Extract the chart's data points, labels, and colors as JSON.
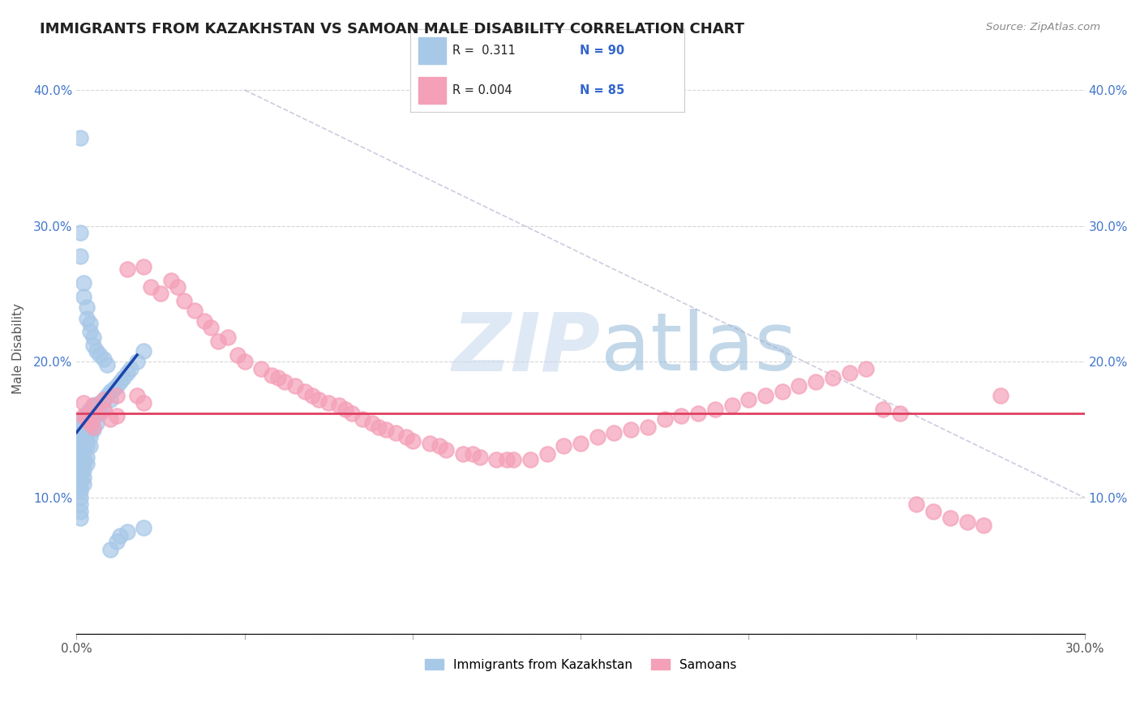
{
  "title": "IMMIGRANTS FROM KAZAKHSTAN VS SAMOAN MALE DISABILITY CORRELATION CHART",
  "source": "Source: ZipAtlas.com",
  "ylabel_label": "Male Disability",
  "xlim": [
    0.0,
    0.3
  ],
  "ylim": [
    0.0,
    0.42
  ],
  "blue_color": "#a8c8e8",
  "pink_color": "#f4a0b8",
  "blue_line_color": "#1a44aa",
  "pink_line_color": "#e04060",
  "watermark_zip": "ZIP",
  "watermark_atlas": "atlas",
  "blue_scatter_x": [
    0.001,
    0.001,
    0.001,
    0.001,
    0.001,
    0.001,
    0.001,
    0.001,
    0.001,
    0.001,
    0.001,
    0.001,
    0.001,
    0.001,
    0.001,
    0.001,
    0.001,
    0.001,
    0.001,
    0.001,
    0.002,
    0.002,
    0.002,
    0.002,
    0.002,
    0.002,
    0.002,
    0.002,
    0.002,
    0.002,
    0.002,
    0.002,
    0.002,
    0.003,
    0.003,
    0.003,
    0.003,
    0.003,
    0.003,
    0.003,
    0.003,
    0.003,
    0.004,
    0.004,
    0.004,
    0.004,
    0.004,
    0.004,
    0.005,
    0.005,
    0.005,
    0.005,
    0.006,
    0.006,
    0.006,
    0.007,
    0.007,
    0.008,
    0.008,
    0.009,
    0.01,
    0.01,
    0.011,
    0.012,
    0.013,
    0.014,
    0.015,
    0.016,
    0.018,
    0.02,
    0.001,
    0.001,
    0.001,
    0.002,
    0.002,
    0.003,
    0.003,
    0.004,
    0.004,
    0.005,
    0.005,
    0.006,
    0.007,
    0.008,
    0.009,
    0.01,
    0.012,
    0.013,
    0.015,
    0.02
  ],
  "blue_scatter_y": [
    0.155,
    0.152,
    0.148,
    0.145,
    0.142,
    0.138,
    0.135,
    0.132,
    0.128,
    0.125,
    0.122,
    0.118,
    0.115,
    0.112,
    0.108,
    0.105,
    0.1,
    0.095,
    0.09,
    0.085,
    0.158,
    0.155,
    0.15,
    0.148,
    0.145,
    0.142,
    0.138,
    0.135,
    0.13,
    0.125,
    0.12,
    0.115,
    0.11,
    0.162,
    0.158,
    0.155,
    0.15,
    0.148,
    0.142,
    0.138,
    0.13,
    0.125,
    0.165,
    0.16,
    0.155,
    0.15,
    0.145,
    0.138,
    0.168,
    0.162,
    0.158,
    0.15,
    0.168,
    0.162,
    0.155,
    0.17,
    0.162,
    0.172,
    0.165,
    0.175,
    0.178,
    0.172,
    0.18,
    0.182,
    0.185,
    0.188,
    0.192,
    0.195,
    0.2,
    0.208,
    0.365,
    0.295,
    0.278,
    0.258,
    0.248,
    0.24,
    0.232,
    0.228,
    0.222,
    0.218,
    0.212,
    0.208,
    0.205,
    0.202,
    0.198,
    0.062,
    0.068,
    0.072,
    0.075,
    0.078
  ],
  "pink_scatter_x": [
    0.002,
    0.003,
    0.004,
    0.005,
    0.006,
    0.008,
    0.01,
    0.012,
    0.015,
    0.018,
    0.02,
    0.022,
    0.025,
    0.028,
    0.03,
    0.032,
    0.035,
    0.038,
    0.04,
    0.042,
    0.045,
    0.048,
    0.05,
    0.055,
    0.058,
    0.06,
    0.062,
    0.065,
    0.068,
    0.07,
    0.072,
    0.075,
    0.078,
    0.08,
    0.082,
    0.085,
    0.088,
    0.09,
    0.092,
    0.095,
    0.098,
    0.1,
    0.105,
    0.108,
    0.11,
    0.115,
    0.118,
    0.12,
    0.125,
    0.128,
    0.13,
    0.135,
    0.14,
    0.145,
    0.15,
    0.155,
    0.16,
    0.165,
    0.17,
    0.175,
    0.18,
    0.185,
    0.19,
    0.195,
    0.2,
    0.205,
    0.21,
    0.215,
    0.22,
    0.225,
    0.23,
    0.235,
    0.24,
    0.245,
    0.25,
    0.255,
    0.26,
    0.265,
    0.27,
    0.275,
    0.002,
    0.005,
    0.008,
    0.012,
    0.02
  ],
  "pink_scatter_y": [
    0.16,
    0.158,
    0.155,
    0.152,
    0.162,
    0.165,
    0.158,
    0.16,
    0.268,
    0.175,
    0.27,
    0.255,
    0.25,
    0.26,
    0.255,
    0.245,
    0.238,
    0.23,
    0.225,
    0.215,
    0.218,
    0.205,
    0.2,
    0.195,
    0.19,
    0.188,
    0.185,
    0.182,
    0.178,
    0.175,
    0.172,
    0.17,
    0.168,
    0.165,
    0.162,
    0.158,
    0.155,
    0.152,
    0.15,
    0.148,
    0.145,
    0.142,
    0.14,
    0.138,
    0.135,
    0.132,
    0.132,
    0.13,
    0.128,
    0.128,
    0.128,
    0.128,
    0.132,
    0.138,
    0.14,
    0.145,
    0.148,
    0.15,
    0.152,
    0.158,
    0.16,
    0.162,
    0.165,
    0.168,
    0.172,
    0.175,
    0.178,
    0.182,
    0.185,
    0.188,
    0.192,
    0.195,
    0.165,
    0.162,
    0.095,
    0.09,
    0.085,
    0.082,
    0.08,
    0.175,
    0.17,
    0.168,
    0.172,
    0.175,
    0.17
  ],
  "pink_line_y": 0.162,
  "blue_line_x_start": 0.0,
  "blue_line_x_end": 0.018,
  "blue_line_y_start": 0.148,
  "blue_line_y_end": 0.205
}
